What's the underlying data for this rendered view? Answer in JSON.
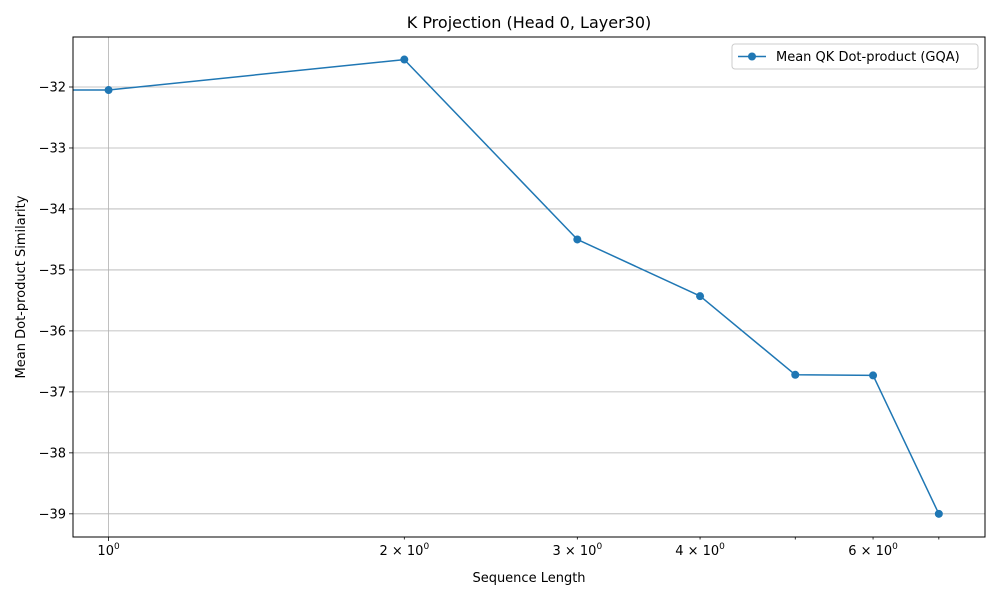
{
  "chart_data": {
    "type": "line",
    "title": "K Projection (Head 0, Layer30)",
    "xlabel": "Sequence Length",
    "ylabel": "Mean Dot-product Similarity",
    "xscale": "log",
    "xlim": [
      0.92,
      7.8
    ],
    "ylim": [
      -39.38,
      -31.18
    ],
    "grid": true,
    "legend_position": "top-right",
    "x_ticks": [
      {
        "value": 1,
        "base": "10",
        "exp": "0",
        "coef": ""
      },
      {
        "value": 2,
        "base": "10",
        "exp": "0",
        "coef": "2 × "
      },
      {
        "value": 3,
        "base": "10",
        "exp": "0",
        "coef": "3 × "
      },
      {
        "value": 4,
        "base": "10",
        "exp": "0",
        "coef": "4 × "
      },
      {
        "value": 6,
        "base": "10",
        "exp": "0",
        "coef": "6 × "
      }
    ],
    "y_ticks": [
      -32,
      -33,
      -34,
      -35,
      -36,
      -37,
      -38,
      -39
    ],
    "y_tick_labels": [
      "−32",
      "−33",
      "−34",
      "−35",
      "−36",
      "−37",
      "−38",
      "−39"
    ],
    "series": [
      {
        "name": "Mean QK Dot-product (GQA)",
        "color": "#1f77b4",
        "marker": "circle",
        "x": [
          0.92,
          1,
          2,
          3,
          4,
          5,
          6,
          7
        ],
        "y": [
          -32.05,
          -32.05,
          -31.55,
          -34.5,
          -35.43,
          -36.72,
          -36.73,
          -39.0
        ]
      }
    ]
  }
}
